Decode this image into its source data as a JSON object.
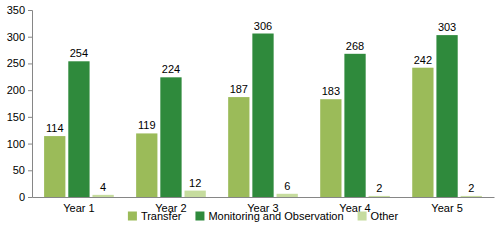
{
  "chart_data": {
    "type": "bar",
    "categories": [
      "Year 1",
      "Year 2",
      "Year 3",
      "Year 4",
      "Year 5"
    ],
    "series": [
      {
        "name": "Transfer",
        "color": "#9bbb59",
        "values": [
          114,
          119,
          187,
          183,
          242
        ]
      },
      {
        "name": "Monitoring and Observation",
        "color": "#2f8a3c",
        "values": [
          254,
          224,
          306,
          268,
          303
        ]
      },
      {
        "name": "Other",
        "color": "#c6dc9e",
        "values": [
          4,
          12,
          6,
          2,
          2
        ]
      }
    ],
    "ylim": [
      0,
      350
    ],
    "yticks": [
      0,
      50,
      100,
      150,
      200,
      250,
      300,
      350
    ],
    "grid": false,
    "legend": "bottom",
    "data_labels": true
  }
}
